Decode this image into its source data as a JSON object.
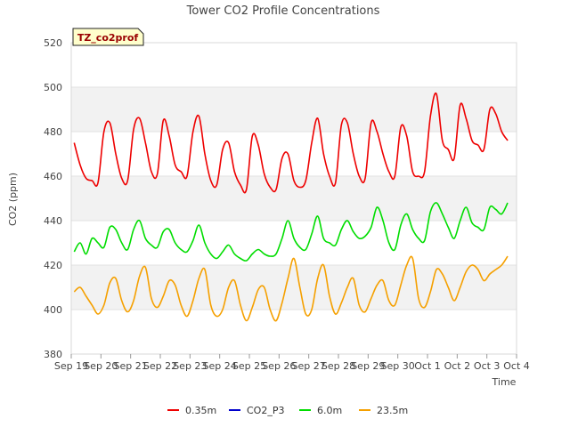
{
  "chart_data": {
    "type": "line",
    "title": "Tower CO2 Profile Concentrations",
    "badge": "TZ_co2prof",
    "xlabel": "Time",
    "ylabel": "CO2 (ppm)",
    "ylim": [
      380,
      520
    ],
    "yticks": [
      380,
      400,
      420,
      440,
      460,
      480,
      500,
      520
    ],
    "xlim": [
      0,
      15
    ],
    "xtick_labels": [
      "Sep 19",
      "Sep 20",
      "Sep 21",
      "Sep 22",
      "Sep 23",
      "Sep 24",
      "Sep 25",
      "Sep 26",
      "Sep 27",
      "Sep 28",
      "Sep 29",
      "Sep 30",
      "Oct 1",
      "Oct 2",
      "Oct 3",
      "Oct 4"
    ],
    "grid": "horizontal alternating bands",
    "legend_position": "bottom-center",
    "series": [
      {
        "name": "0.35m",
        "color": "#ee0000",
        "x": [
          0.1,
          0.3,
          0.5,
          0.7,
          0.9,
          1.1,
          1.3,
          1.5,
          1.7,
          1.9,
          2.1,
          2.3,
          2.5,
          2.7,
          2.9,
          3.1,
          3.3,
          3.5,
          3.7,
          3.9,
          4.1,
          4.3,
          4.5,
          4.7,
          4.9,
          5.1,
          5.3,
          5.5,
          5.7,
          5.9,
          6.1,
          6.3,
          6.5,
          6.7,
          6.9,
          7.1,
          7.3,
          7.5,
          7.7,
          7.9,
          8.1,
          8.3,
          8.5,
          8.7,
          8.9,
          9.1,
          9.3,
          9.5,
          9.7,
          9.9,
          10.1,
          10.3,
          10.5,
          10.7,
          10.9,
          11.1,
          11.3,
          11.5,
          11.7,
          11.9,
          12.1,
          12.3,
          12.5,
          12.7,
          12.9,
          13.1,
          13.3,
          13.5,
          13.7,
          13.9,
          14.1,
          14.3,
          14.5,
          14.7
        ],
        "values": [
          475,
          465,
          459,
          458,
          457,
          480,
          484,
          470,
          459,
          458,
          481,
          486,
          475,
          462,
          461,
          485,
          478,
          465,
          462,
          460,
          480,
          487,
          470,
          458,
          456,
          472,
          475,
          462,
          456,
          454,
          478,
          474,
          461,
          455,
          454,
          468,
          470,
          458,
          455,
          458,
          475,
          486,
          470,
          460,
          457,
          483,
          484,
          470,
          460,
          459,
          484,
          480,
          470,
          462,
          460,
          482,
          478,
          462,
          460,
          462,
          487,
          497,
          476,
          472,
          468,
          492,
          486,
          476,
          474,
          472,
          490,
          488,
          480,
          476
        ]
      },
      {
        "name": "CO2_P3",
        "color": "#0000cc",
        "x": [],
        "values": []
      },
      {
        "name": "6.0m",
        "color": "#00dd00",
        "x": [
          0.1,
          0.3,
          0.5,
          0.7,
          0.9,
          1.1,
          1.3,
          1.5,
          1.7,
          1.9,
          2.1,
          2.3,
          2.5,
          2.7,
          2.9,
          3.1,
          3.3,
          3.5,
          3.7,
          3.9,
          4.1,
          4.3,
          4.5,
          4.7,
          4.9,
          5.1,
          5.3,
          5.5,
          5.7,
          5.9,
          6.1,
          6.3,
          6.5,
          6.7,
          6.9,
          7.1,
          7.3,
          7.5,
          7.7,
          7.9,
          8.1,
          8.3,
          8.5,
          8.7,
          8.9,
          9.1,
          9.3,
          9.5,
          9.7,
          9.9,
          10.1,
          10.3,
          10.5,
          10.7,
          10.9,
          11.1,
          11.3,
          11.5,
          11.7,
          11.9,
          12.1,
          12.3,
          12.5,
          12.7,
          12.9,
          13.1,
          13.3,
          13.5,
          13.7,
          13.9,
          14.1,
          14.3,
          14.5,
          14.7
        ],
        "values": [
          426,
          430,
          425,
          432,
          430,
          428,
          437,
          436,
          430,
          427,
          436,
          440,
          432,
          429,
          428,
          435,
          436,
          430,
          427,
          426,
          431,
          438,
          430,
          425,
          423,
          426,
          429,
          425,
          423,
          422,
          425,
          427,
          425,
          424,
          425,
          432,
          440,
          432,
          428,
          427,
          434,
          442,
          432,
          430,
          429,
          436,
          440,
          435,
          432,
          433,
          437,
          446,
          440,
          430,
          427,
          438,
          443,
          436,
          432,
          431,
          444,
          448,
          443,
          437,
          432,
          440,
          446,
          439,
          437,
          436,
          446,
          445,
          443,
          448
        ]
      },
      {
        "name": "23.5m",
        "color": "#f5a000",
        "x": [
          0.1,
          0.3,
          0.5,
          0.7,
          0.9,
          1.1,
          1.3,
          1.5,
          1.7,
          1.9,
          2.1,
          2.3,
          2.5,
          2.7,
          2.9,
          3.1,
          3.3,
          3.5,
          3.7,
          3.9,
          4.1,
          4.3,
          4.5,
          4.7,
          4.9,
          5.1,
          5.3,
          5.5,
          5.7,
          5.9,
          6.1,
          6.3,
          6.5,
          6.7,
          6.9,
          7.1,
          7.3,
          7.5,
          7.7,
          7.9,
          8.1,
          8.3,
          8.5,
          8.7,
          8.9,
          9.1,
          9.3,
          9.5,
          9.7,
          9.9,
          10.1,
          10.3,
          10.5,
          10.7,
          10.9,
          11.1,
          11.3,
          11.5,
          11.7,
          11.9,
          12.1,
          12.3,
          12.5,
          12.7,
          12.9,
          13.1,
          13.3,
          13.5,
          13.7,
          13.9,
          14.1,
          14.3,
          14.5,
          14.7
        ],
        "values": [
          408,
          410,
          406,
          402,
          398,
          402,
          412,
          414,
          404,
          399,
          404,
          415,
          419,
          405,
          401,
          406,
          413,
          411,
          402,
          397,
          404,
          414,
          418,
          402,
          397,
          400,
          410,
          413,
          402,
          395,
          401,
          409,
          410,
          400,
          395,
          403,
          414,
          423,
          410,
          398,
          400,
          414,
          420,
          406,
          398,
          403,
          410,
          414,
          402,
          399,
          405,
          411,
          413,
          404,
          402,
          411,
          420,
          423,
          405,
          401,
          408,
          418,
          416,
          410,
          404,
          410,
          417,
          420,
          418,
          413,
          416,
          418,
          420,
          424
        ]
      }
    ]
  }
}
